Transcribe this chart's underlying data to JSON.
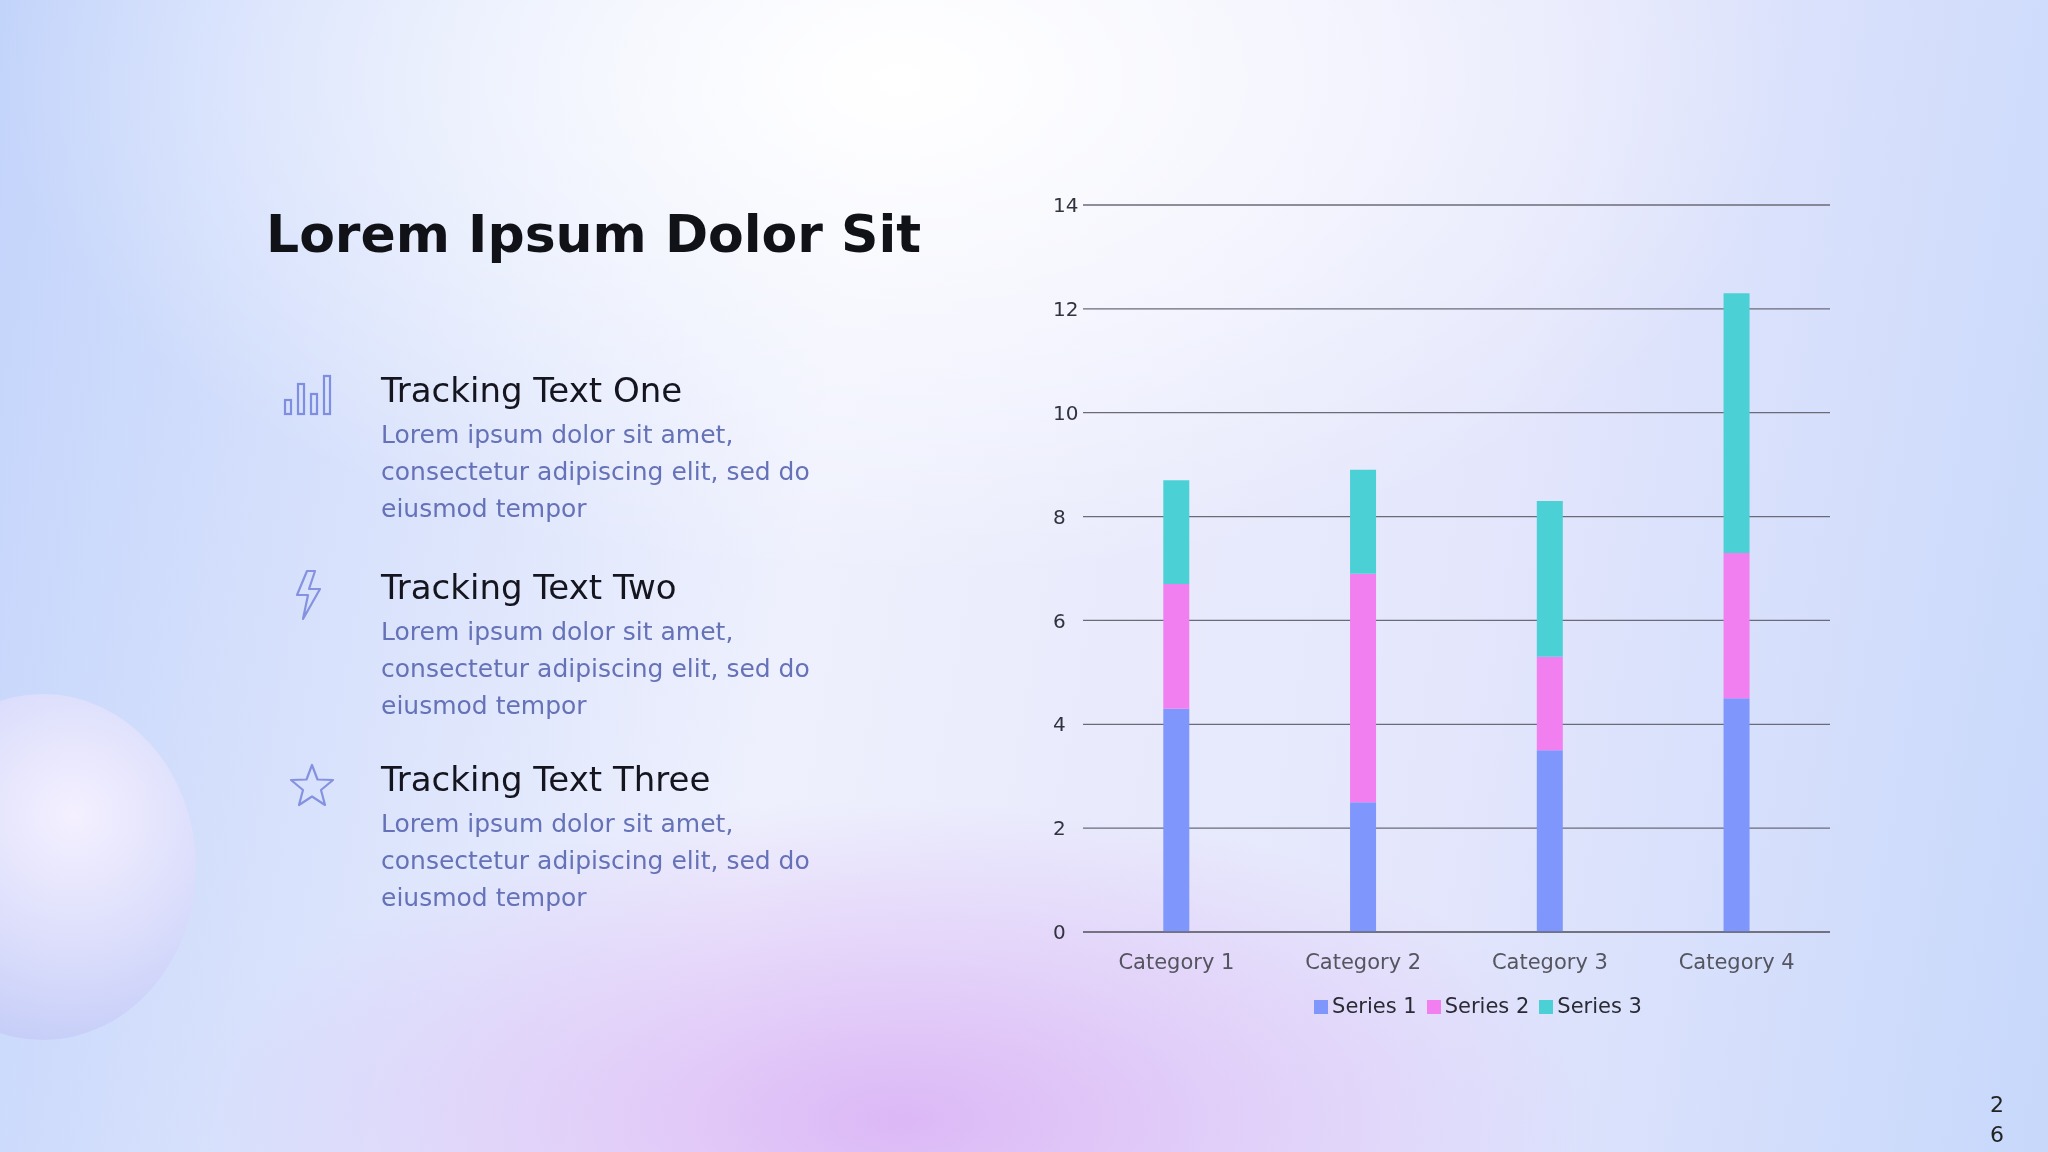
{
  "chart_data": {
    "type": "bar",
    "title": "Lorem Ipsum Dolor Sit",
    "categories": [
      "Category 1",
      "Category 2",
      "Category 3",
      "Category 4"
    ],
    "series": [
      {
        "name": "Series 1",
        "color": "#7f96fc",
        "values": [
          4.3,
          2.5,
          3.5,
          4.5
        ]
      },
      {
        "name": "Series 2",
        "color": "#f27fef",
        "values": [
          2.4,
          4.4,
          1.8,
          2.8
        ]
      },
      {
        "name": "Series 3",
        "color": "#4bd0d6",
        "values": [
          2,
          2,
          3,
          5
        ]
      }
    ],
    "stacked": true,
    "ylim": [
      0,
      14
    ],
    "yticks": [
      0,
      2,
      4,
      6,
      8,
      10,
      12,
      14
    ],
    "grid": "y",
    "legend": "bottom",
    "annotations": [
      "Tracking Text One",
      "Lorem ipsum dolor sit amet, consectetur adipiscing elit, sed do eiusmod tempor",
      "Tracking Text Two",
      "Lorem ipsum dolor sit amet, consectetur adipiscing elit, sed do eiusmod tempor",
      "Tracking Text Three",
      "Lorem ipsum dolor sit amet, consectetur adipiscing elit, sed do eiusmod tempor",
      "26"
    ]
  }
}
